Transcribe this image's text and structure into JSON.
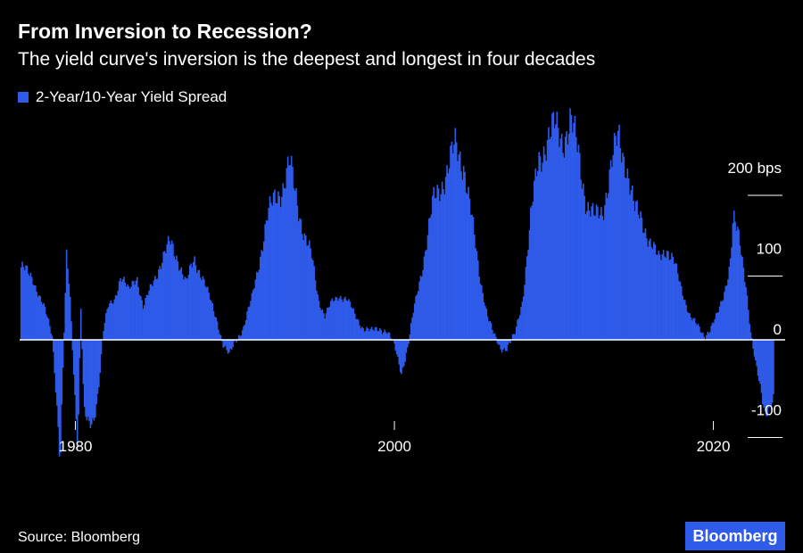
{
  "header": {
    "title": "From Inversion to Recession?",
    "subtitle": "The yield curve's inversion is the deepest and longest in four decades"
  },
  "legend": {
    "label": "2-Year/10-Year Yield Spread"
  },
  "footer": {
    "source": "Source: Bloomberg",
    "logo": "Bloomberg"
  },
  "colors": {
    "background": "#000000",
    "bar": "#2f5bea",
    "text": "#ffffff",
    "zero_line": "#ffffff"
  },
  "chart_data": {
    "type": "bar",
    "series": [
      {
        "name": "2-Year/10-Year Yield Spread"
      }
    ],
    "y_unit": "bps",
    "ylim": [
      -200,
      290
    ],
    "xlim": [
      1976.5,
      2024.5
    ],
    "grid": false,
    "legend_position": "top-left",
    "y_ticks": [
      {
        "value": 200,
        "label": "200 bps"
      },
      {
        "value": 100,
        "label": "100"
      },
      {
        "value": 0,
        "label": "0"
      },
      {
        "value": -100,
        "label": "-100"
      }
    ],
    "x_ticks": [
      {
        "value": 1980,
        "label": "1980"
      },
      {
        "value": 2000,
        "label": "2000"
      },
      {
        "value": 2020,
        "label": "2020"
      }
    ],
    "points": [
      [
        1976.6,
        90
      ],
      [
        1977.3,
        75
      ],
      [
        1978.0,
        40
      ],
      [
        1978.5,
        5
      ],
      [
        1978.8,
        -80
      ],
      [
        1979.0,
        -150
      ],
      [
        1979.2,
        -20
      ],
      [
        1979.4,
        100
      ],
      [
        1979.6,
        60
      ],
      [
        1979.9,
        -60
      ],
      [
        1980.1,
        -130
      ],
      [
        1980.3,
        40
      ],
      [
        1980.5,
        -90
      ],
      [
        1980.8,
        -110
      ],
      [
        1981.1,
        -100
      ],
      [
        1981.4,
        -60
      ],
      [
        1981.7,
        10
      ],
      [
        1982.0,
        40
      ],
      [
        1982.4,
        50
      ],
      [
        1982.8,
        80
      ],
      [
        1983.3,
        60
      ],
      [
        1983.8,
        80
      ],
      [
        1984.2,
        40
      ],
      [
        1984.6,
        60
      ],
      [
        1985.0,
        80
      ],
      [
        1985.4,
        100
      ],
      [
        1985.9,
        120
      ],
      [
        1986.4,
        100
      ],
      [
        1986.9,
        70
      ],
      [
        1987.4,
        100
      ],
      [
        1987.9,
        80
      ],
      [
        1988.4,
        50
      ],
      [
        1988.9,
        20
      ],
      [
        1989.2,
        -5
      ],
      [
        1989.6,
        -20
      ],
      [
        1990.0,
        0
      ],
      [
        1990.5,
        15
      ],
      [
        1991.0,
        50
      ],
      [
        1991.5,
        100
      ],
      [
        1992.0,
        150
      ],
      [
        1992.5,
        180
      ],
      [
        1993.0,
        190
      ],
      [
        1993.4,
        215
      ],
      [
        1993.8,
        180
      ],
      [
        1994.3,
        130
      ],
      [
        1994.8,
        100
      ],
      [
        1995.2,
        50
      ],
      [
        1995.6,
        30
      ],
      [
        1996.0,
        45
      ],
      [
        1996.5,
        55
      ],
      [
        1997.0,
        50
      ],
      [
        1997.5,
        30
      ],
      [
        1998.0,
        15
      ],
      [
        1998.5,
        10
      ],
      [
        1999.0,
        15
      ],
      [
        1999.5,
        10
      ],
      [
        2000.0,
        -10
      ],
      [
        2000.4,
        -40
      ],
      [
        2000.8,
        -10
      ],
      [
        2001.2,
        40
      ],
      [
        2001.8,
        100
      ],
      [
        2002.4,
        170
      ],
      [
        2002.8,
        190
      ],
      [
        2003.3,
        210
      ],
      [
        2003.8,
        240
      ],
      [
        2004.3,
        220
      ],
      [
        2004.8,
        150
      ],
      [
        2005.3,
        80
      ],
      [
        2005.8,
        30
      ],
      [
        2006.2,
        5
      ],
      [
        2006.6,
        -10
      ],
      [
        2007.0,
        -10
      ],
      [
        2007.5,
        5
      ],
      [
        2008.0,
        50
      ],
      [
        2008.5,
        150
      ],
      [
        2009.0,
        220
      ],
      [
        2009.5,
        250
      ],
      [
        2010.0,
        260
      ],
      [
        2010.5,
        250
      ],
      [
        2011.0,
        270
      ],
      [
        2011.5,
        230
      ],
      [
        2012.0,
        170
      ],
      [
        2012.5,
        150
      ],
      [
        2013.0,
        160
      ],
      [
        2013.5,
        210
      ],
      [
        2014.0,
        250
      ],
      [
        2014.5,
        220
      ],
      [
        2015.0,
        160
      ],
      [
        2015.5,
        150
      ],
      [
        2016.0,
        120
      ],
      [
        2016.5,
        100
      ],
      [
        2017.0,
        115
      ],
      [
        2017.5,
        95
      ],
      [
        2018.0,
        60
      ],
      [
        2018.5,
        30
      ],
      [
        2019.0,
        15
      ],
      [
        2019.4,
        5
      ],
      [
        2019.8,
        15
      ],
      [
        2020.2,
        30
      ],
      [
        2020.6,
        55
      ],
      [
        2021.0,
        95
      ],
      [
        2021.2,
        150
      ],
      [
        2021.6,
        120
      ],
      [
        2022.0,
        70
      ],
      [
        2022.3,
        10
      ],
      [
        2022.6,
        -30
      ],
      [
        2022.9,
        -60
      ],
      [
        2023.2,
        -90
      ],
      [
        2023.5,
        -80
      ],
      [
        2023.8,
        -70
      ]
    ]
  }
}
